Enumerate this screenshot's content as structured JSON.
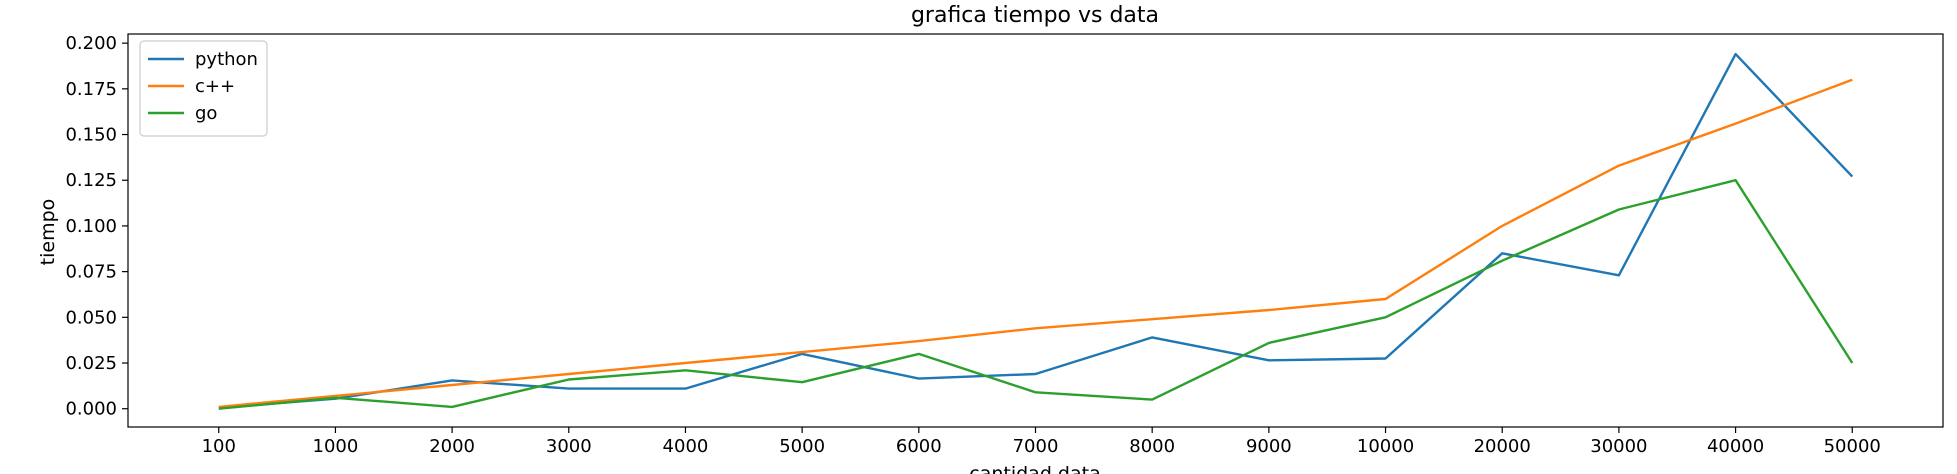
{
  "chart_data": {
    "type": "line",
    "title": "grafica tiempo vs data",
    "xlabel": "cantidad data",
    "ylabel": "tiempo",
    "categories": [
      "100",
      "1000",
      "2000",
      "3000",
      "4000",
      "5000",
      "6000",
      "7000",
      "8000",
      "9000",
      "10000",
      "20000",
      "30000",
      "40000",
      "50000"
    ],
    "ylim": [
      -0.01,
      0.205
    ],
    "yticks": [
      "0.000",
      "0.025",
      "0.050",
      "0.075",
      "0.100",
      "0.125",
      "0.150",
      "0.175",
      "0.200"
    ],
    "ytick_values": [
      0,
      0.025,
      0.05,
      0.075,
      0.1,
      0.125,
      0.15,
      0.175,
      0.2
    ],
    "grid": false,
    "legend_position": "top-left",
    "series": [
      {
        "name": "python",
        "color": "#1f77b4",
        "values": [
          0.0005,
          0.0055,
          0.0155,
          0.011,
          0.011,
          0.03,
          0.0165,
          0.019,
          0.039,
          0.0265,
          0.0275,
          0.085,
          0.073,
          0.194,
          0.127
        ]
      },
      {
        "name": "c++",
        "color": "#ff7f0e",
        "values": [
          0.001,
          0.007,
          0.013,
          0.019,
          0.025,
          0.031,
          0.037,
          0.044,
          0.049,
          0.054,
          0.06,
          0.1,
          0.133,
          0.156,
          0.18
        ]
      },
      {
        "name": "go",
        "color": "#2ca02c",
        "values": [
          0.0,
          0.006,
          0.001,
          0.016,
          0.021,
          0.0145,
          0.03,
          0.009,
          0.005,
          0.036,
          0.05,
          0.081,
          0.109,
          0.125,
          0.025
        ]
      }
    ]
  }
}
